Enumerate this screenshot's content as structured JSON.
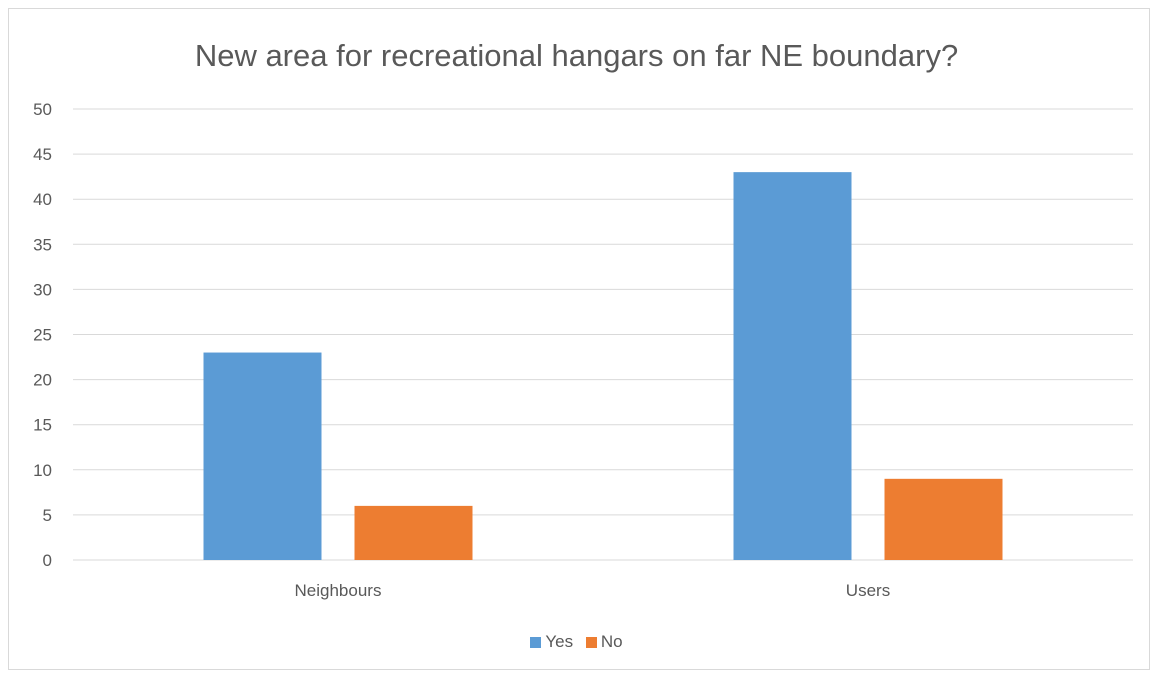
{
  "chart_data": {
    "type": "bar",
    "title": "New area for recreational hangars on far NE boundary?",
    "categories": [
      "Neighbours",
      "Users"
    ],
    "series": [
      {
        "name": "Yes",
        "values": [
          23,
          43
        ],
        "color": "#5B9BD5"
      },
      {
        "name": "No",
        "values": [
          6,
          9
        ],
        "color": "#ED7D31"
      }
    ],
    "ylim": [
      0,
      50
    ],
    "yticks": [
      0,
      5,
      10,
      15,
      20,
      25,
      30,
      35,
      40,
      45,
      50
    ],
    "grid": true,
    "legend_position": "bottom"
  }
}
